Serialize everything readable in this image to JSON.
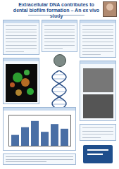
{
  "header": {
    "title": "Extracellular DNA contributes to dental biofilm formation – An ex vivo study"
  },
  "chart_data": {
    "type": "bar",
    "values": [
      35,
      60,
      80,
      45,
      70,
      55
    ],
    "color": "#4a6fa5",
    "ylim": [
      0,
      100
    ],
    "tick_labels": false
  }
}
